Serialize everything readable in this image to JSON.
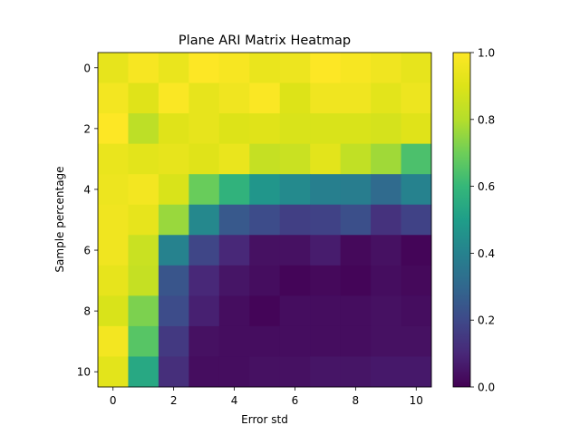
{
  "chart_data": {
    "type": "heatmap",
    "title": "Plane ARI Matrix Heatmap",
    "xlabel": "Error std",
    "ylabel": "Sample percentage",
    "x_ticks": [
      "0",
      "2",
      "4",
      "6",
      "8",
      "10"
    ],
    "y_ticks": [
      "0",
      "2",
      "4",
      "6",
      "8",
      "10"
    ],
    "colorbar": {
      "colormap": "viridis",
      "range": [
        0.0,
        1.0
      ],
      "ticks": [
        "0.0",
        "0.2",
        "0.4",
        "0.6",
        "0.8",
        "1.0"
      ]
    },
    "matrix": [
      [
        0.93,
        0.98,
        0.94,
        1.0,
        0.98,
        0.94,
        0.95,
        1.0,
        0.98,
        0.96,
        0.93
      ],
      [
        0.97,
        0.91,
        0.99,
        0.93,
        0.96,
        0.99,
        0.9,
        0.96,
        0.96,
        0.92,
        0.95
      ],
      [
        1.0,
        0.82,
        0.91,
        0.93,
        0.9,
        0.91,
        0.89,
        0.89,
        0.89,
        0.88,
        0.91
      ],
      [
        0.94,
        0.92,
        0.93,
        0.91,
        0.94,
        0.84,
        0.85,
        0.92,
        0.83,
        0.77,
        0.64
      ],
      [
        0.95,
        0.97,
        0.89,
        0.69,
        0.58,
        0.47,
        0.43,
        0.39,
        0.38,
        0.31,
        0.4
      ],
      [
        0.96,
        0.93,
        0.76,
        0.42,
        0.25,
        0.21,
        0.17,
        0.18,
        0.22,
        0.13,
        0.18
      ],
      [
        0.96,
        0.85,
        0.4,
        0.19,
        0.1,
        0.04,
        0.04,
        0.07,
        0.02,
        0.04,
        0.01
      ],
      [
        0.93,
        0.84,
        0.24,
        0.1,
        0.05,
        0.03,
        0.01,
        0.02,
        0.01,
        0.03,
        0.02
      ],
      [
        0.89,
        0.72,
        0.21,
        0.08,
        0.03,
        0.01,
        0.03,
        0.03,
        0.03,
        0.04,
        0.03
      ],
      [
        0.97,
        0.66,
        0.15,
        0.04,
        0.03,
        0.03,
        0.03,
        0.03,
        0.03,
        0.04,
        0.04
      ],
      [
        0.92,
        0.54,
        0.12,
        0.03,
        0.03,
        0.04,
        0.04,
        0.05,
        0.05,
        0.06,
        0.06
      ]
    ]
  }
}
